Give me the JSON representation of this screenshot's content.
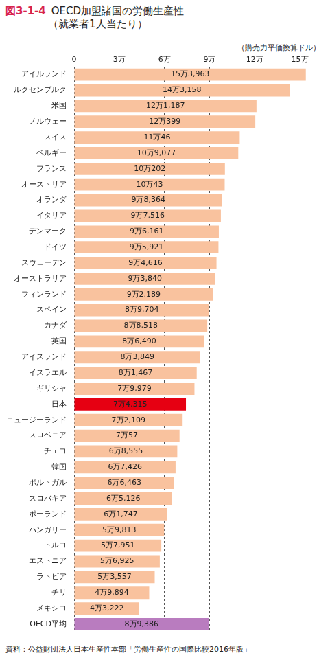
{
  "chart_data": {
    "type": "bar",
    "orientation": "horizontal",
    "figure_number": "図3-1-4",
    "title": "OECD加盟諸国の労働生産性",
    "subtitle": "（就業者1人当たり）",
    "x_label": "（購売力平価換算ドル）",
    "source": "資料：公益財団法人日本生産性本部「労働生産性の国際比較2016年版」",
    "categories": [
      "アイルランド",
      "ルクセンブルク",
      "米国",
      "ノルウェー",
      "スイス",
      "ベルギー",
      "フランス",
      "オーストリア",
      "オランダ",
      "イタリア",
      "デンマーク",
      "ドイツ",
      "スウェーデン",
      "オーストラリア",
      "フィンランド",
      "スペイン",
      "カナダ",
      "英国",
      "アイスランド",
      "イスラエル",
      "ギリシャ",
      "日本",
      "ニュージーランド",
      "スロベニア",
      "チェコ",
      "韓国",
      "ポルトガル",
      "スロバキア",
      "ポーランド",
      "ハンガリー",
      "トルコ",
      "エストニア",
      "ラトビア",
      "チリ",
      "メキシコ",
      "OECD平均"
    ],
    "values": [
      153963,
      143158,
      121187,
      120399,
      110046,
      109077,
      100202,
      100043,
      98364,
      97516,
      96161,
      95921,
      94616,
      93840,
      92189,
      89704,
      88518,
      86490,
      83849,
      81467,
      79979,
      74315,
      72109,
      70057,
      68555,
      67426,
      66463,
      65126,
      61747,
      59813,
      57951,
      56925,
      53557,
      49894,
      43222,
      89386
    ],
    "value_labels": [
      "15万3,963",
      "14万3,158",
      "12万1,187",
      "12万399",
      "11万46",
      "10万9,077",
      "10万202",
      "10万43",
      "9万8,364",
      "9万7,516",
      "9万6,161",
      "9万5,921",
      "9万4,616",
      "9万3,840",
      "9万2,189",
      "8万9,704",
      "8万8,518",
      "8万6,490",
      "8万3,849",
      "8万1,467",
      "7万9,979",
      "7万4,315",
      "7万2,109",
      "7万57",
      "6万8,555",
      "6万7,426",
      "6万6,463",
      "6万5,126",
      "6万1,747",
      "5万9,813",
      "5万7,951",
      "5万6,925",
      "5万3,557",
      "4万9,894",
      "4万3,222",
      "8万9,386"
    ],
    "colors": [
      "#f9c29e",
      "#f9c29e",
      "#f9c29e",
      "#f9c29e",
      "#f9c29e",
      "#f9c29e",
      "#f9c29e",
      "#f9c29e",
      "#f9c29e",
      "#f9c29e",
      "#f9c29e",
      "#f9c29e",
      "#f9c29e",
      "#f9c29e",
      "#f9c29e",
      "#f9c29e",
      "#f9c29e",
      "#f9c29e",
      "#f9c29e",
      "#f9c29e",
      "#f9c29e",
      "#e60012",
      "#f9c29e",
      "#f9c29e",
      "#f9c29e",
      "#f9c29e",
      "#f9c29e",
      "#f9c29e",
      "#f9c29e",
      "#f9c29e",
      "#f9c29e",
      "#f9c29e",
      "#f9c29e",
      "#f9c29e",
      "#f9c29e",
      "#b97cbf"
    ],
    "xlim": [
      0,
      160000
    ],
    "xticks": [
      0,
      {
        "value": 30000,
        "label": "3万"
      },
      {
        "value": 60000,
        "label": "6万"
      },
      {
        "value": 90000,
        "label": "9万"
      },
      {
        "value": 120000,
        "label": "12万"
      },
      {
        "value": 150000,
        "label": "15万"
      }
    ],
    "grid": true,
    "data_labels": true
  }
}
